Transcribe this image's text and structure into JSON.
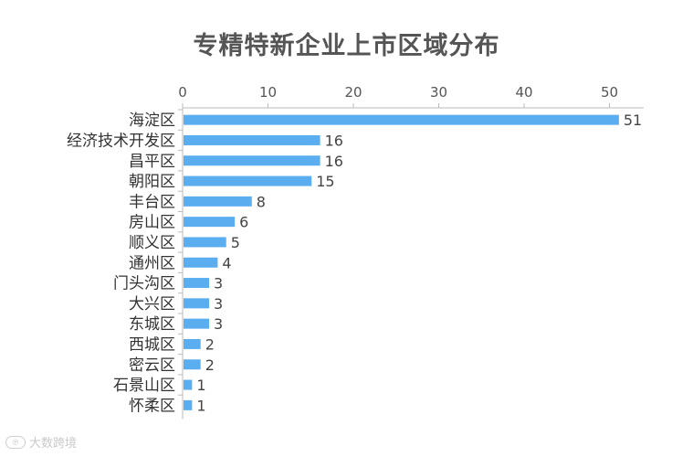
{
  "chart_data": {
    "type": "bar",
    "orientation": "horizontal",
    "title": "专精特新企业上市区域分布",
    "categories": [
      "海淀区",
      "经济技术开发区",
      "昌平区",
      "朝阳区",
      "丰台区",
      "房山区",
      "顺义区",
      "通州区",
      "门头沟区",
      "大兴区",
      "东城区",
      "西城区",
      "密云区",
      "石景山区",
      "怀柔区"
    ],
    "values": [
      51,
      16,
      16,
      15,
      8,
      6,
      5,
      4,
      3,
      3,
      3,
      2,
      2,
      1,
      1
    ],
    "x_ticks": [
      "0",
      "10",
      "20",
      "30",
      "40",
      "50"
    ],
    "xlim": [
      0,
      54
    ],
    "axis_position": "top",
    "grid": false,
    "legend": "none",
    "bar_color": "#5aaef0"
  },
  "watermark": {
    "text": "大数跨境",
    "icon": "brand-logo-icon"
  }
}
